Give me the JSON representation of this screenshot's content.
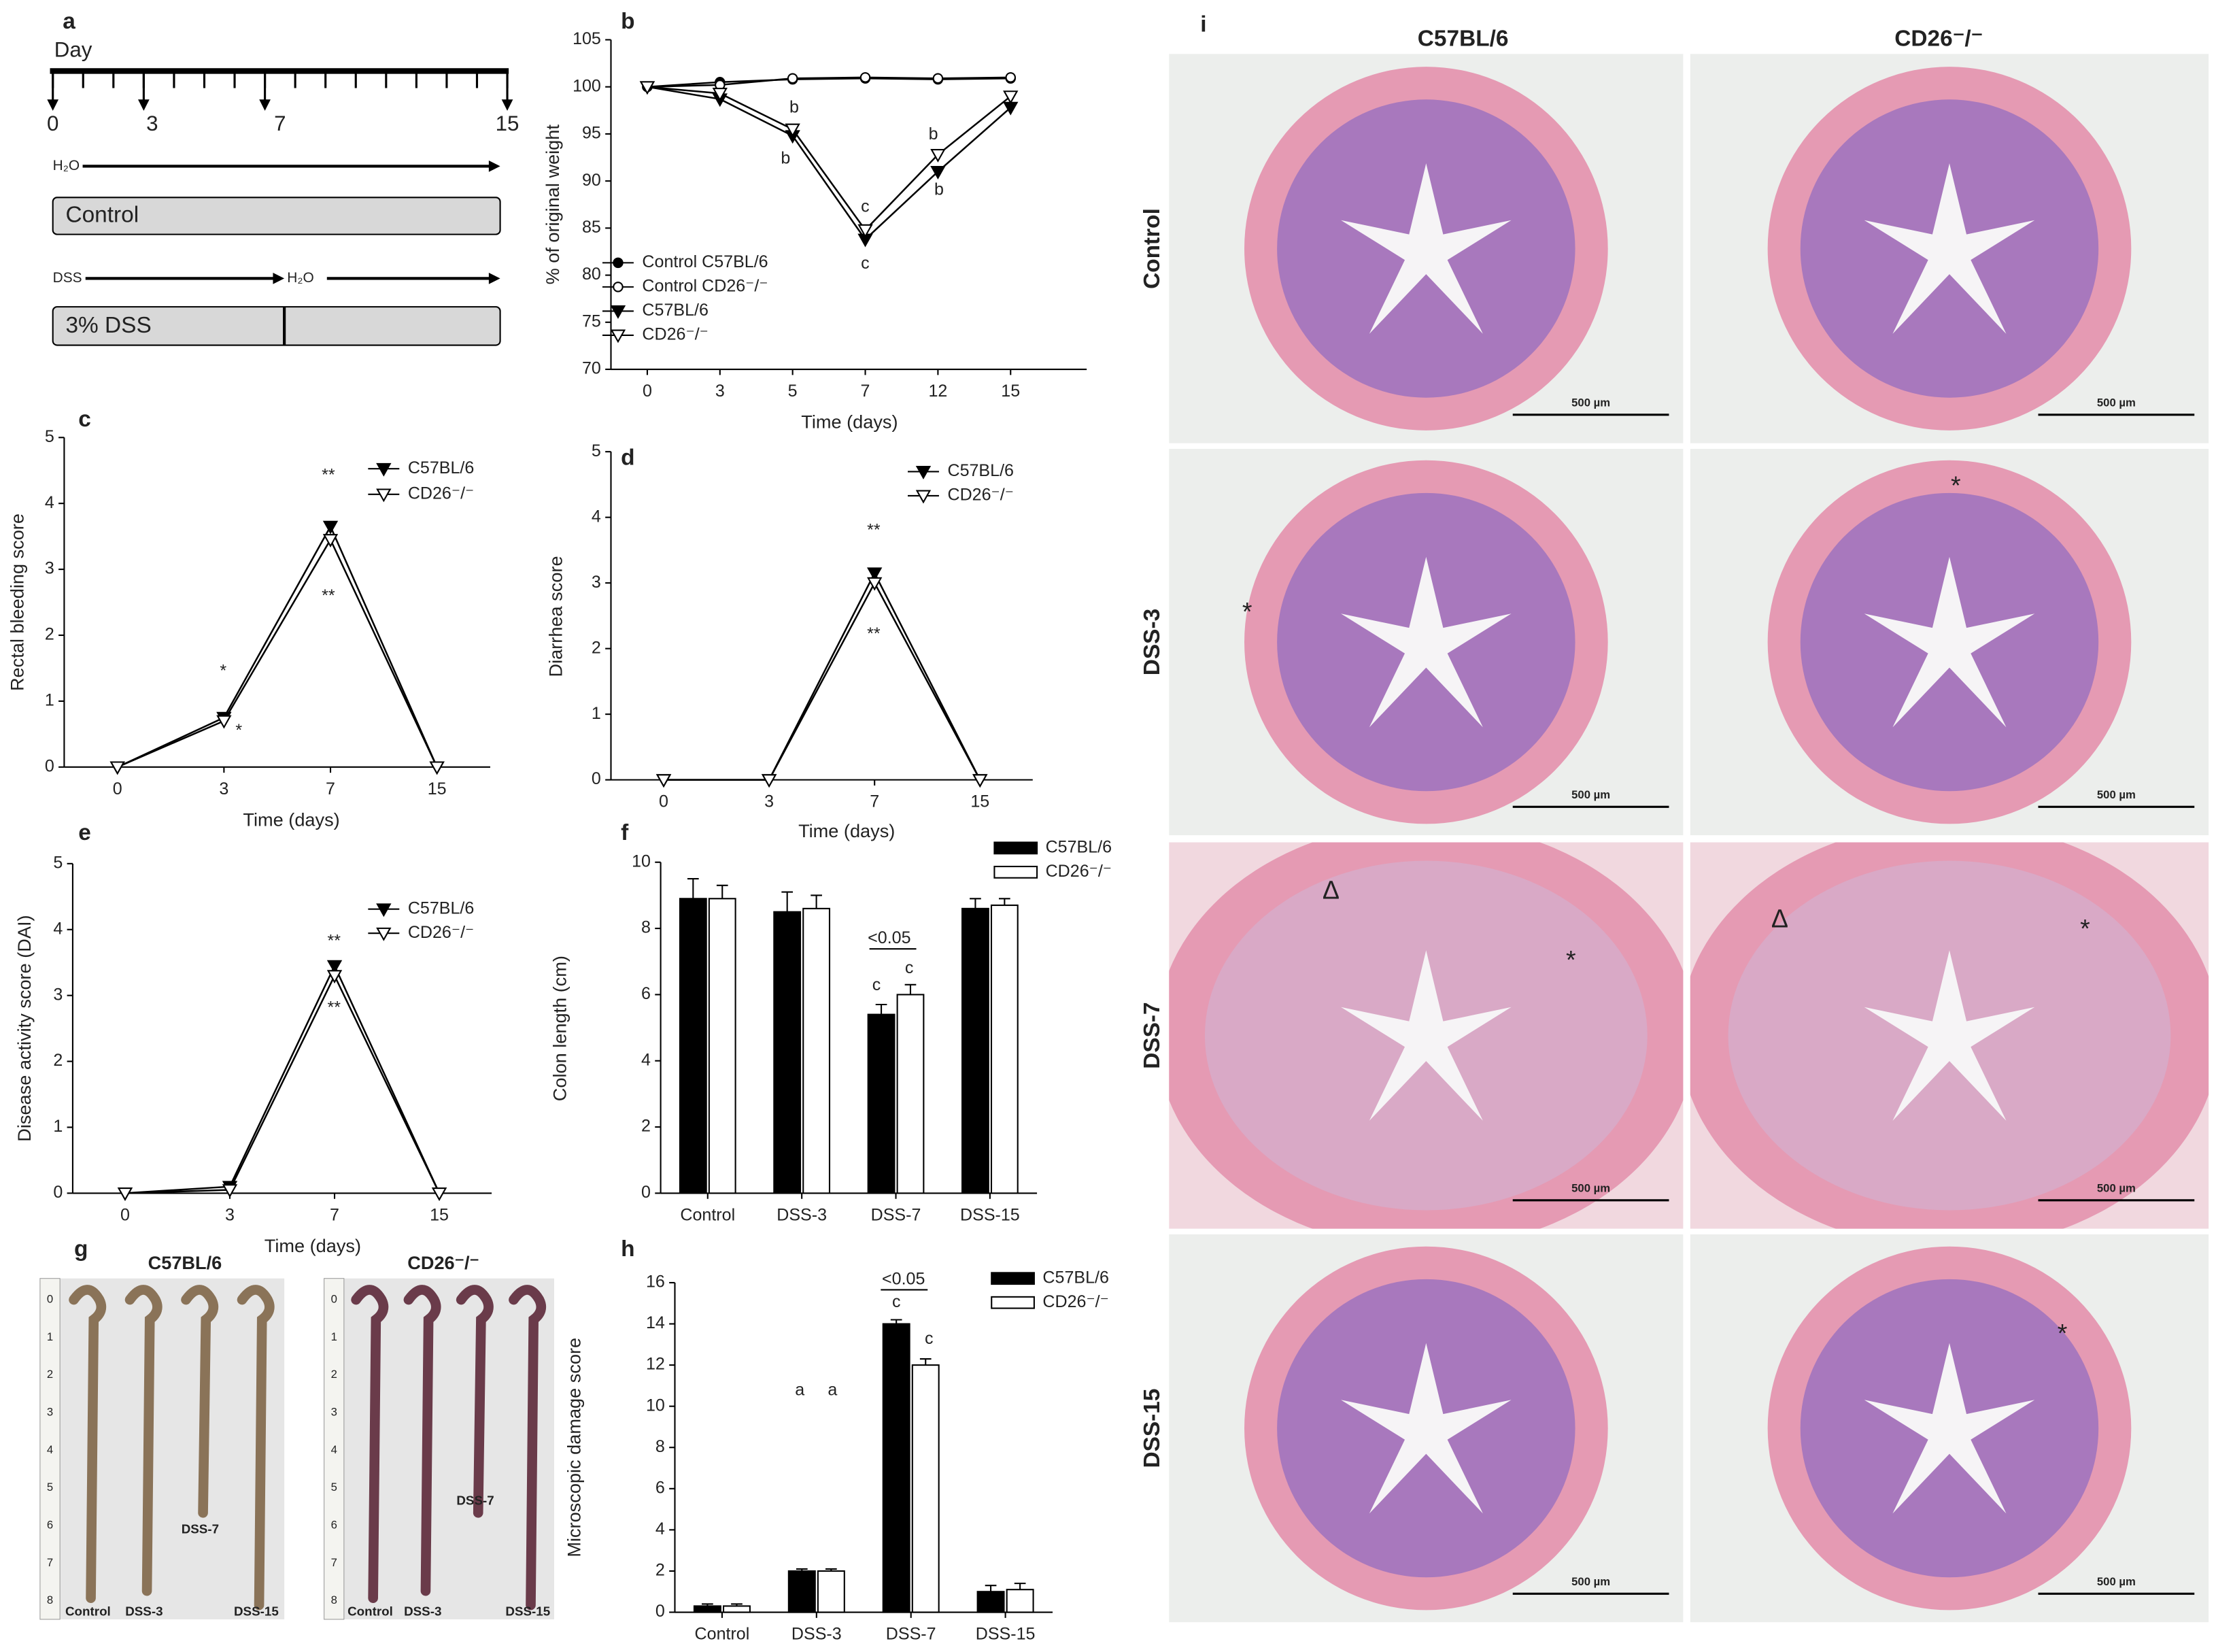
{
  "panel_a": {
    "panel": "a",
    "axis_label": "Day",
    "ticks": [
      "0",
      "3",
      "7",
      "15"
    ],
    "water": "H₂O",
    "control": "Control",
    "dss": "DSS",
    "water2": "H₂O",
    "dss_box": "3% DSS"
  },
  "chart_data": [
    {
      "panel": "b",
      "type": "line",
      "x_label": "Time (days)",
      "y_label": "% of original weight",
      "categories": [
        "0",
        "3",
        "5",
        "7",
        "12",
        "15"
      ],
      "ylim": [
        70,
        105
      ],
      "yticks": [
        70,
        75,
        80,
        85,
        90,
        95,
        100,
        105
      ],
      "series": [
        {
          "name": "Control C57BL/6",
          "color": "#000000",
          "marker": "circle",
          "marker_fill": "#000000",
          "values": [
            100,
            100.5,
            100.8,
            100.9,
            100.8,
            100.9
          ]
        },
        {
          "name": "Control CD26⁻/⁻",
          "color": "#000000",
          "marker": "circle",
          "marker_fill": "#ffffff",
          "values": [
            100,
            100.2,
            100.9,
            101,
            100.9,
            101
          ]
        },
        {
          "name": "C57BL/6",
          "color": "#000000",
          "marker": "triangle-down",
          "marker_fill": "#000000",
          "values": [
            100,
            98.7,
            94.8,
            83.8,
            91,
            97.8
          ]
        },
        {
          "name": "CD26⁻/⁻",
          "color": "#000000",
          "marker": "triangle-down",
          "marker_fill": "#ffffff",
          "values": [
            100,
            99.3,
            95.5,
            84.8,
            92.8,
            99
          ]
        }
      ],
      "annotations": [
        "b",
        "b",
        "c",
        "c",
        "b",
        "b"
      ],
      "legend": "lower-left"
    },
    {
      "panel": "c",
      "type": "line",
      "x_label": "Time (days)",
      "y_label": "Rectal bleeding score",
      "categories": [
        "0",
        "3",
        "7",
        "15"
      ],
      "ylim": [
        0,
        5
      ],
      "yticks": [
        0,
        1,
        2,
        3,
        4,
        5
      ],
      "series": [
        {
          "name": "C57BL/6",
          "color": "#000000",
          "marker": "triangle-down",
          "marker_fill": "#000000",
          "values": [
            0,
            0.75,
            3.65,
            0
          ]
        },
        {
          "name": "CD26⁻/⁻",
          "color": "#000000",
          "marker": "triangle-down",
          "marker_fill": "#ffffff",
          "values": [
            0,
            0.7,
            3.45,
            0
          ]
        }
      ],
      "annotations": [
        "*",
        "*",
        "**",
        "**"
      ],
      "legend": "upper-right"
    },
    {
      "panel": "d",
      "type": "line",
      "x_label": "Time (days)",
      "y_label": "Diarrhea score",
      "categories": [
        "0",
        "3",
        "7",
        "15"
      ],
      "ylim": [
        0,
        5
      ],
      "yticks": [
        0,
        1,
        2,
        3,
        4,
        5
      ],
      "series": [
        {
          "name": "C57BL/6",
          "color": "#000000",
          "marker": "triangle-down",
          "marker_fill": "#000000",
          "values": [
            0,
            0,
            3.15,
            0
          ]
        },
        {
          "name": "CD26⁻/⁻",
          "color": "#000000",
          "marker": "triangle-down",
          "marker_fill": "#ffffff",
          "values": [
            0,
            0,
            3.0,
            0
          ]
        }
      ],
      "annotations": [
        "**",
        "**"
      ],
      "legend": "upper-right"
    },
    {
      "panel": "e",
      "type": "line",
      "x_label": "Time (days)",
      "y_label": "Disease activity score (DAI)",
      "categories": [
        "0",
        "3",
        "7",
        "15"
      ],
      "ylim": [
        0,
        5
      ],
      "yticks": [
        0,
        1,
        2,
        3,
        4,
        5
      ],
      "series": [
        {
          "name": "C57BL/6",
          "color": "#000000",
          "marker": "triangle-down",
          "marker_fill": "#000000",
          "values": [
            0,
            0.1,
            3.45,
            0
          ]
        },
        {
          "name": "CD26⁻/⁻",
          "color": "#000000",
          "marker": "triangle-down",
          "marker_fill": "#ffffff",
          "values": [
            0,
            0.05,
            3.3,
            0
          ]
        }
      ],
      "annotations": [
        "**",
        "**"
      ],
      "legend": "upper-right"
    },
    {
      "panel": "f",
      "type": "bar",
      "y_label": "Colon length (cm)",
      "categories": [
        "Control",
        "DSS-3",
        "DSS-7",
        "DSS-15"
      ],
      "ylim": [
        0,
        10
      ],
      "yticks": [
        0,
        2,
        4,
        6,
        8,
        10
      ],
      "series": [
        {
          "name": "C57BL/6",
          "color": "#000000",
          "values": [
            8.9,
            8.5,
            5.4,
            8.6
          ],
          "errors": [
            0.6,
            0.6,
            0.3,
            0.3
          ]
        },
        {
          "name": "CD26⁻/⁻",
          "color": "#ffffff",
          "values": [
            8.9,
            8.6,
            6.0,
            8.7
          ],
          "errors": [
            0.4,
            0.4,
            0.3,
            0.2
          ]
        }
      ],
      "annotations": [
        "<0.05",
        "c",
        "c"
      ],
      "legend": "upper-right"
    },
    {
      "panel": "h",
      "type": "bar",
      "y_label": "Microscopic damage score",
      "categories": [
        "Control",
        "DSS-3",
        "DSS-7",
        "DSS-15"
      ],
      "ylim": [
        0,
        16
      ],
      "yticks": [
        0,
        2,
        4,
        6,
        8,
        10,
        12,
        14,
        16
      ],
      "series": [
        {
          "name": "C57BL/6",
          "color": "#000000",
          "values": [
            0.3,
            2.0,
            14,
            1.0
          ],
          "errors": [
            0.1,
            0.1,
            0.2,
            0.3
          ]
        },
        {
          "name": "CD26⁻/⁻",
          "color": "#ffffff",
          "values": [
            0.3,
            2.0,
            12.0,
            1.1
          ],
          "errors": [
            0.1,
            0.1,
            0.3,
            0.3
          ]
        }
      ],
      "annotations": [
        "<0.05",
        "c",
        "c",
        "a",
        "a"
      ],
      "legend": "upper-right"
    }
  ],
  "panel_g": {
    "panel": "g",
    "groups": [
      "C57BL/6",
      "CD26⁻/⁻"
    ],
    "samples": [
      "Control",
      "DSS-3",
      "DSS-7",
      "DSS-15"
    ],
    "ruler": [
      0,
      1,
      2,
      3,
      4,
      5,
      6,
      7,
      8
    ]
  },
  "panel_i": {
    "panel": "i",
    "columns": [
      "C57BL/6",
      "CD26⁻/⁻"
    ],
    "rows": [
      "Control",
      "DSS-3",
      "DSS-7",
      "DSS-15"
    ],
    "scale_bar": "500 µm",
    "symbols": [
      "*",
      "Δ"
    ]
  }
}
